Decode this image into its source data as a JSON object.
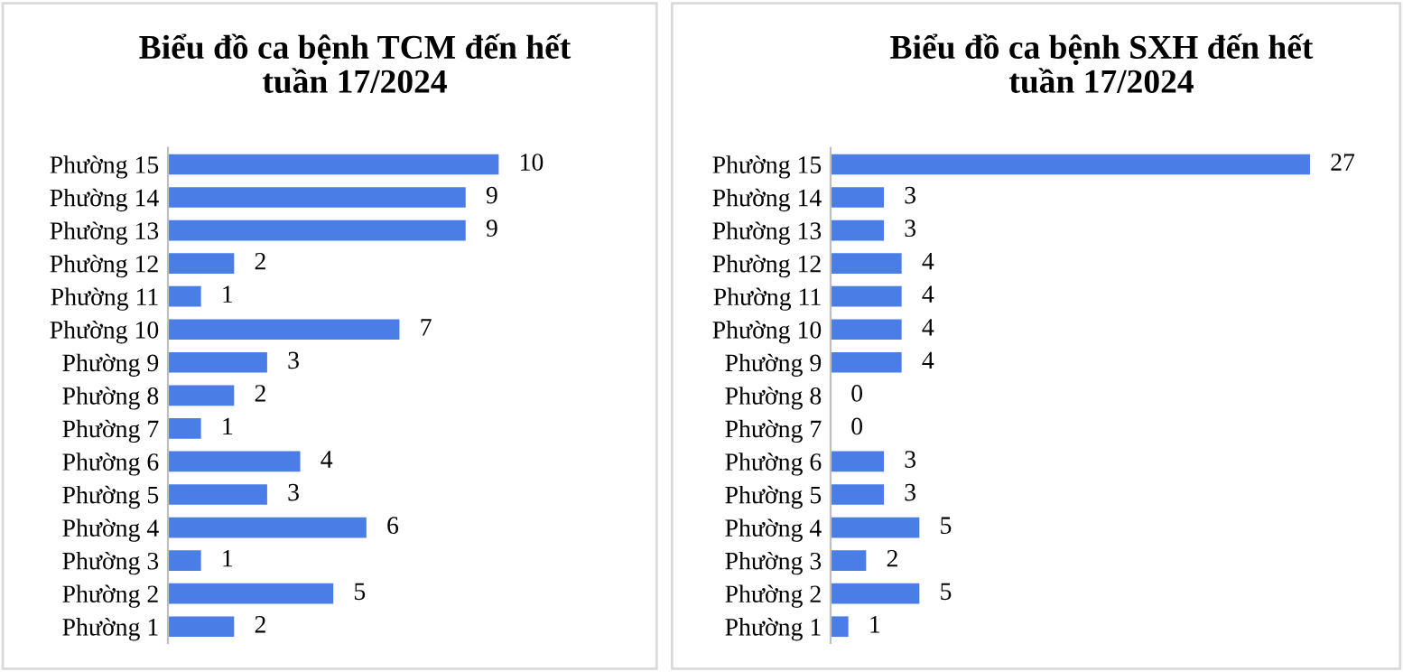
{
  "chart_data": [
    {
      "type": "bar",
      "orientation": "horizontal",
      "title": "Biểu đồ ca bệnh TCM đến hết\ntuần 17/2024",
      "categories": [
        "Phường 15",
        "Phường 14",
        "Phường 13",
        "Phường 12",
        "Phường 11",
        "Phường 10",
        "Phường 9",
        "Phường 8",
        "Phường 7",
        "Phường 6",
        "Phường 5",
        "Phường 4",
        "Phường 3",
        "Phường 2",
        "Phường 1"
      ],
      "values": [
        10,
        9,
        9,
        2,
        1,
        7,
        3,
        2,
        1,
        4,
        3,
        6,
        1,
        5,
        2
      ],
      "color": "#4a7ee6",
      "data_labels": true,
      "tick_labels": "y",
      "grid": false,
      "legend": false
    },
    {
      "type": "bar",
      "orientation": "horizontal",
      "title": "Biểu đồ ca bệnh SXH đến hết\ntuần 17/2024",
      "categories": [
        "Phường 15",
        "Phường 14",
        "Phường 13",
        "Phường 12",
        "Phường 11",
        "Phường 10",
        "Phường 9",
        "Phường 8",
        "Phường 7",
        "Phường 6",
        "Phường 5",
        "Phường 4",
        "Phường 3",
        "Phường 2",
        "Phường 1"
      ],
      "values": [
        27,
        3,
        3,
        4,
        4,
        4,
        4,
        0,
        0,
        3,
        3,
        5,
        2,
        5,
        1
      ],
      "color": "#4a7ee6",
      "data_labels": true,
      "tick_labels": "y",
      "grid": false,
      "legend": false
    }
  ]
}
